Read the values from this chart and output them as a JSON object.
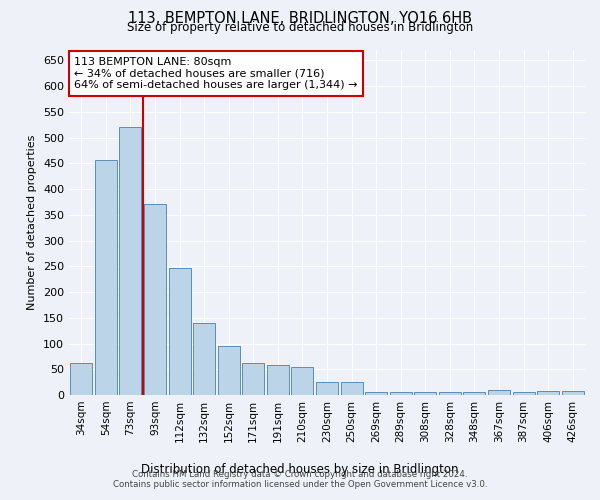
{
  "title": "113, BEMPTON LANE, BRIDLINGTON, YO16 6HB",
  "subtitle": "Size of property relative to detached houses in Bridlington",
  "xlabel": "Distribution of detached houses by size in Bridlington",
  "ylabel": "Number of detached properties",
  "categories": [
    "34sqm",
    "54sqm",
    "73sqm",
    "93sqm",
    "112sqm",
    "132sqm",
    "152sqm",
    "171sqm",
    "191sqm",
    "210sqm",
    "230sqm",
    "250sqm",
    "269sqm",
    "289sqm",
    "308sqm",
    "328sqm",
    "348sqm",
    "367sqm",
    "387sqm",
    "406sqm",
    "426sqm"
  ],
  "values": [
    62,
    457,
    520,
    370,
    247,
    140,
    95,
    62,
    58,
    55,
    25,
    25,
    5,
    5,
    5,
    5,
    5,
    10,
    5,
    8,
    8
  ],
  "bar_color": "#bcd4e8",
  "bar_edge_color": "#5b8db8",
  "vline_x": 2.5,
  "vline_color": "#cc0000",
  "annotation_text": "113 BEMPTON LANE: 80sqm\n← 34% of detached houses are smaller (716)\n64% of semi-detached houses are larger (1,344) →",
  "annotation_box_facecolor": "#ffffff",
  "annotation_box_edgecolor": "#cc0000",
  "ylim": [
    0,
    670
  ],
  "yticks": [
    0,
    50,
    100,
    150,
    200,
    250,
    300,
    350,
    400,
    450,
    500,
    550,
    600,
    650
  ],
  "background_color": "#eef2f8",
  "grid_color": "#ffffff",
  "footer_line1": "Contains HM Land Registry data © Crown copyright and database right 2024.",
  "footer_line2": "Contains public sector information licensed under the Open Government Licence v3.0."
}
